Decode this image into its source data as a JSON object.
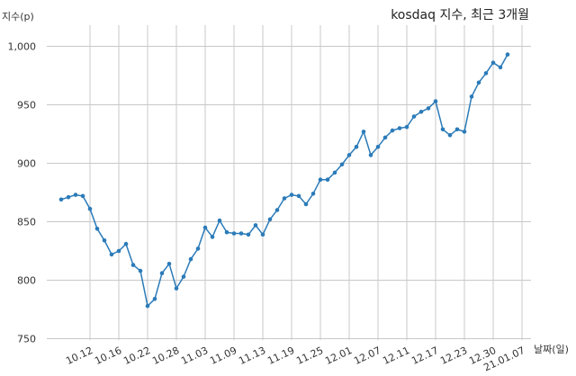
{
  "chart_data": {
    "type": "line",
    "title": "kosdaq 지수, 최근 3개월",
    "xlabel": "날짜(일)",
    "ylabel": "지수(p)",
    "ylim": [
      750,
      1020
    ],
    "yticks": [
      750,
      800,
      850,
      900,
      950,
      1000
    ],
    "ytick_labels": [
      "750",
      "800",
      "850",
      "900",
      "950",
      "1,000"
    ],
    "xtick_labels": [
      "10.12",
      "10.16",
      "10.22",
      "10.28",
      "11.03",
      "11.09",
      "11.13",
      "11.19",
      "11.25",
      "12.01",
      "12.07",
      "12.11",
      "12.17",
      "12.23",
      "12.30",
      "21.01.07"
    ],
    "xtick_positions": [
      4,
      8,
      12,
      16,
      20,
      24,
      28,
      32,
      36,
      40,
      44,
      48,
      52,
      56,
      60,
      64
    ],
    "grid": true,
    "line_color": "#2b7bb9",
    "series": [
      {
        "name": "",
        "values": [
          869,
          871,
          873,
          872,
          861,
          844,
          834,
          822,
          825,
          831,
          813,
          808,
          778,
          784,
          806,
          814,
          793,
          803,
          818,
          827,
          845,
          837,
          851,
          841,
          840,
          840,
          839,
          847,
          839,
          852,
          860,
          870,
          873,
          872,
          865,
          874,
          886,
          886,
          892,
          899,
          907,
          914,
          927,
          907,
          914,
          922,
          928,
          930,
          931,
          940,
          944,
          947,
          953,
          929,
          924,
          929,
          927,
          957,
          969,
          977,
          986,
          982,
          993
        ]
      }
    ]
  }
}
